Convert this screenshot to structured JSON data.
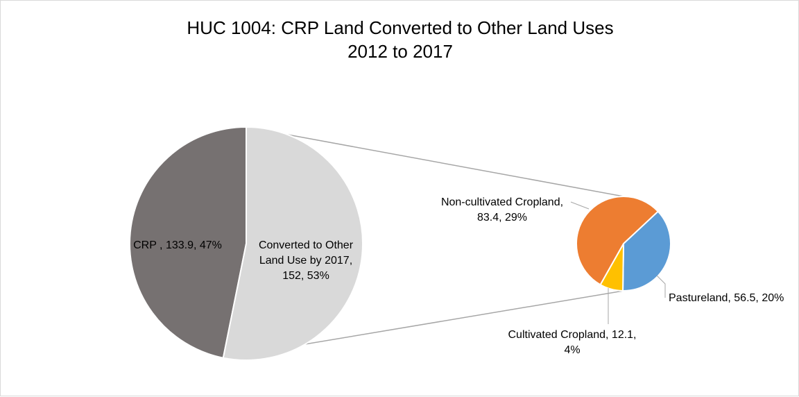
{
  "chart_data": {
    "type": "pie",
    "title": "HUC 1004: CRP Land Converted to Other Land Uses",
    "subtitle": "2012 to 2017",
    "main_pie": {
      "slices": [
        {
          "name": "CRP",
          "value": 133.9,
          "percent": "47%",
          "color": "#767171",
          "label_lines": [
            "CRP , 133.9, 47%"
          ]
        },
        {
          "name": "Converted to Other Land Use by 2017",
          "value": 152,
          "percent": "53%",
          "color": "#d9d9d9",
          "label_lines": [
            "Converted to Other",
            "Land Use by 2017,",
            "152, 53%"
          ]
        }
      ]
    },
    "secondary_pie": {
      "slices": [
        {
          "name": "Pastureland",
          "value": 56.5,
          "percent": "20%",
          "color": "#5b9bd5",
          "label_lines": [
            "Pastureland, 56.5, 20%"
          ]
        },
        {
          "name": "Cultivated Cropland",
          "value": 12.1,
          "percent": "4%",
          "color": "#ffc000",
          "label_lines": [
            "Cultivated Cropland, 12.1,",
            "4%"
          ]
        },
        {
          "name": "Non-cultivated Cropland",
          "value": 83.4,
          "percent": "29%",
          "color": "#ed7d31",
          "label_lines": [
            "Non-cultivated Cropland,",
            "83.4, 29%"
          ]
        }
      ]
    },
    "connector_color": "#a6a6a6",
    "legend": "none"
  }
}
